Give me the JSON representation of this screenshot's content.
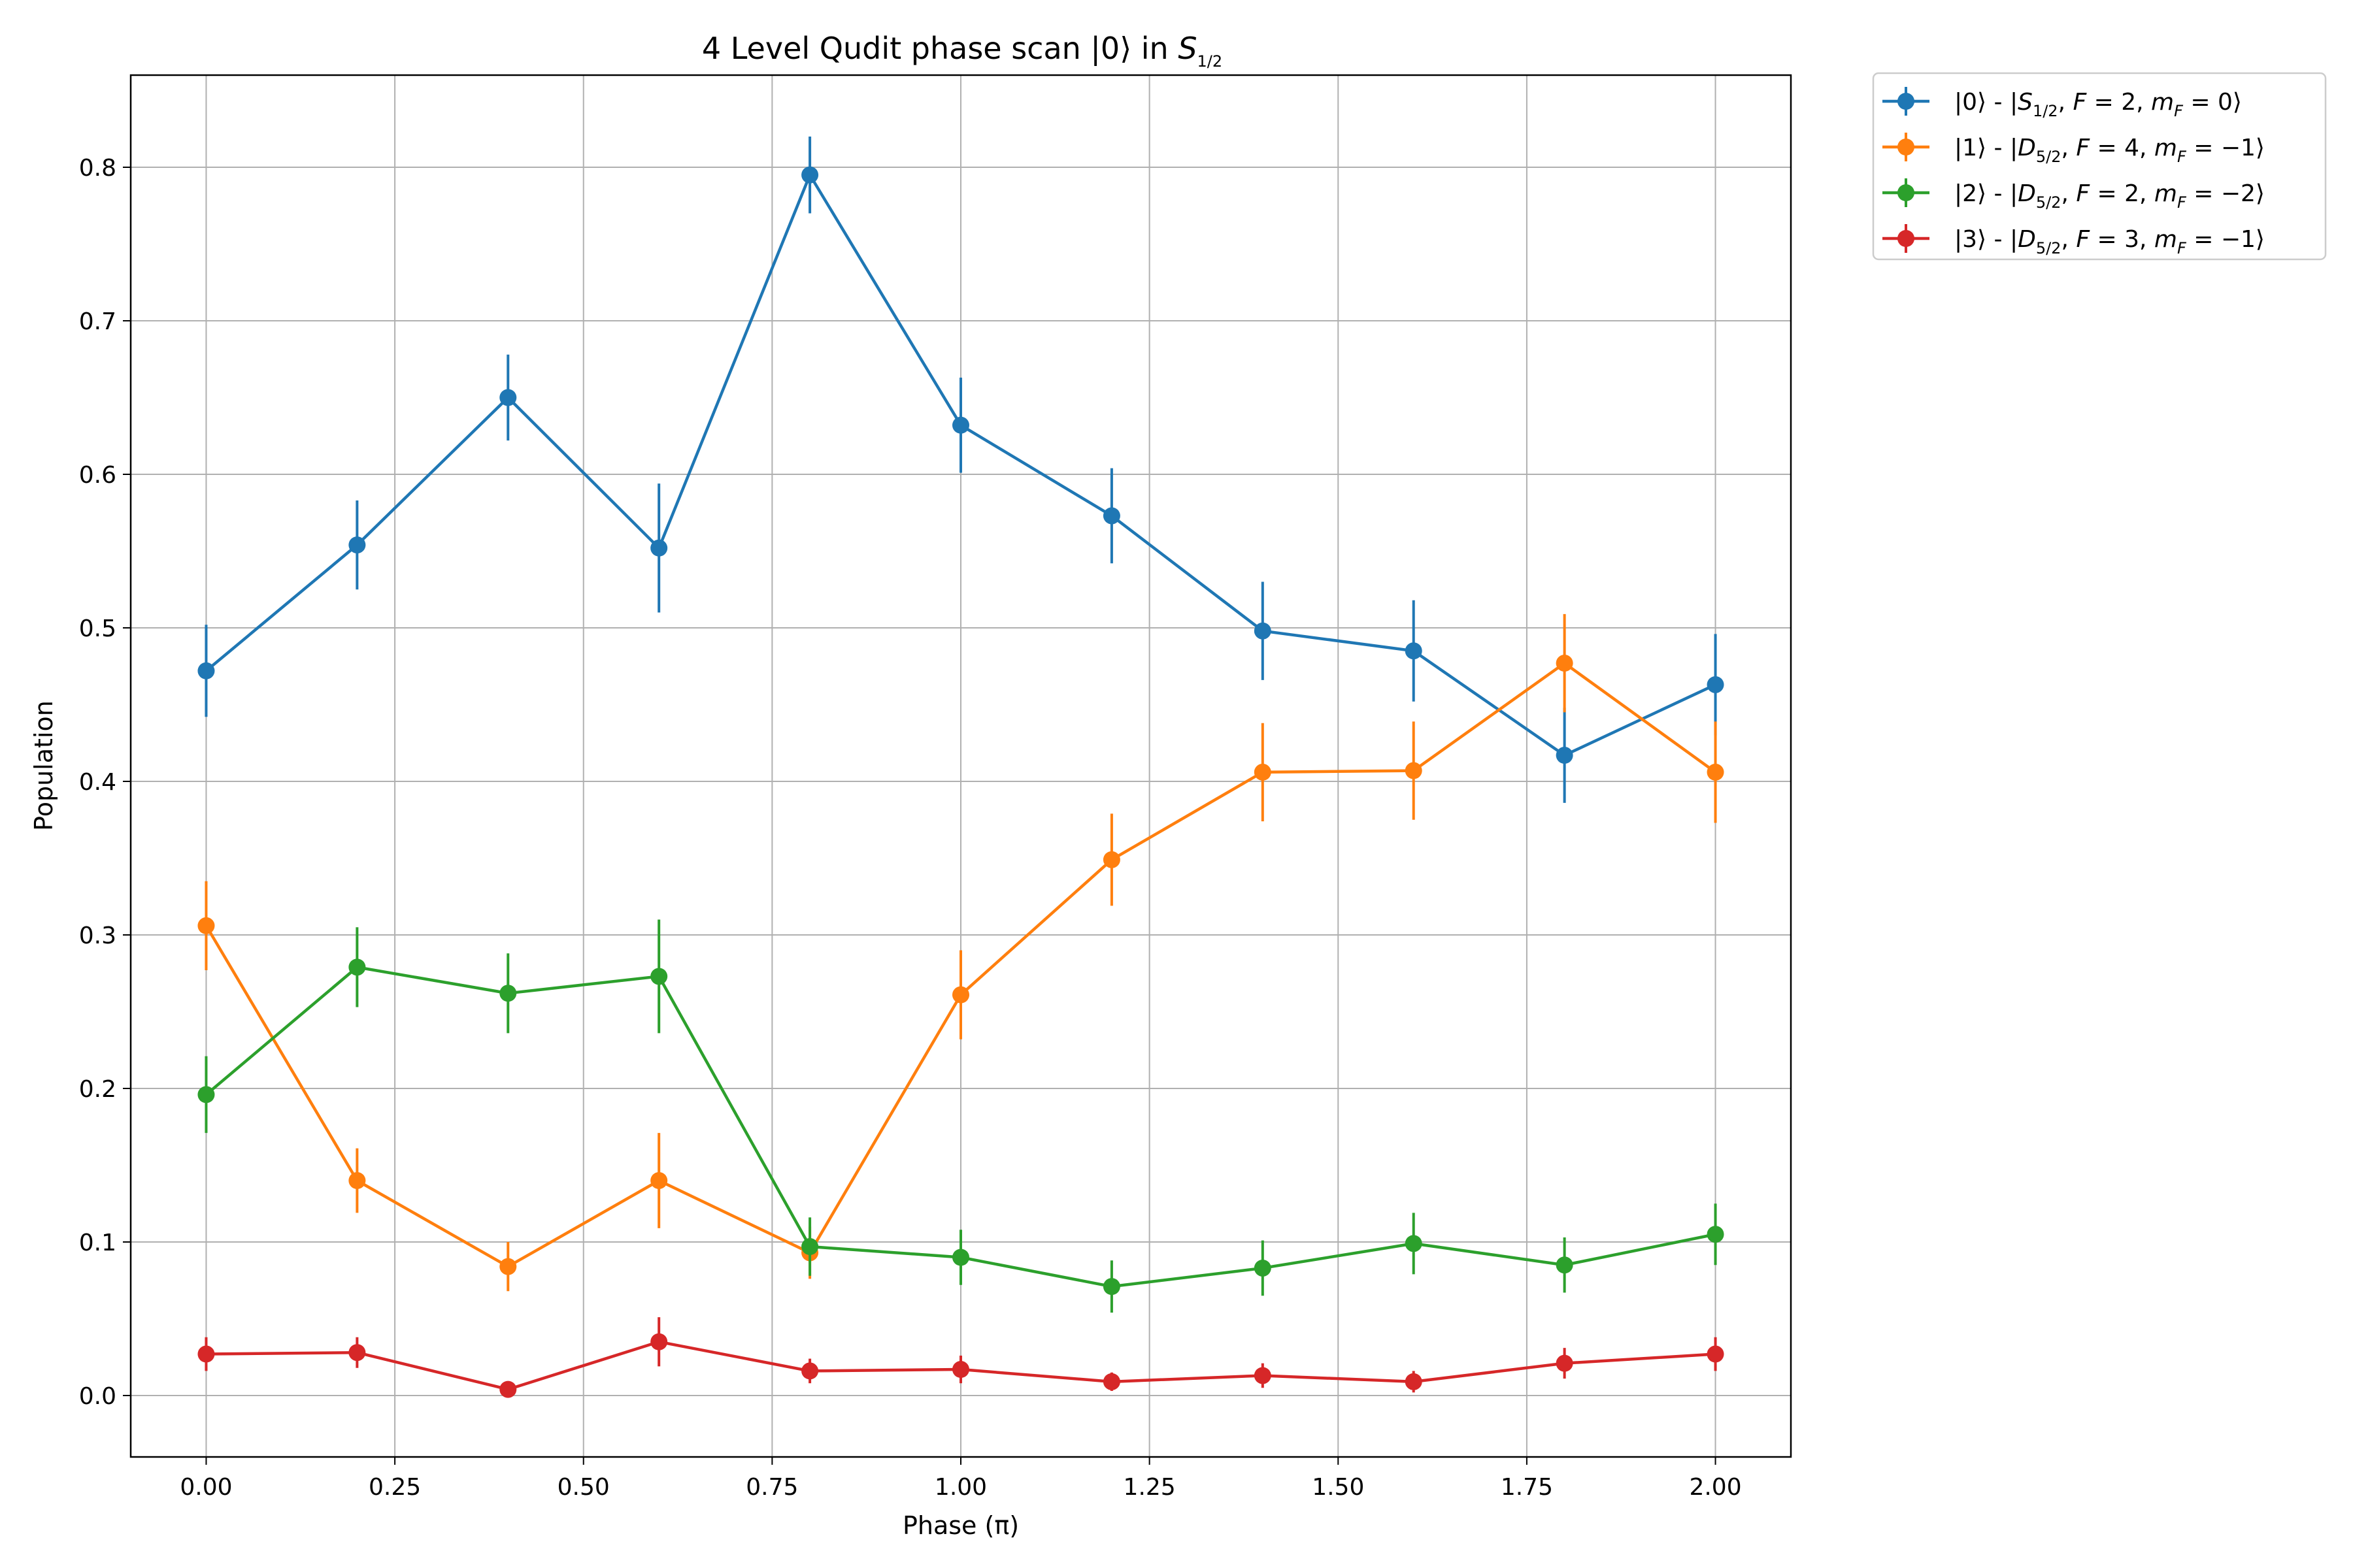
{
  "chart_data": {
    "type": "line",
    "title_parts": {
      "prefix": "4 Level Qudit phase scan |0⟩ in ",
      "math_base": "S",
      "math_sub": "1/2"
    },
    "xlabel": "Phase (π)",
    "ylabel": "Population",
    "xlim": [
      -0.1,
      2.1
    ],
    "ylim": [
      -0.04,
      0.86
    ],
    "xticks": [
      0.0,
      0.25,
      0.5,
      0.75,
      1.0,
      1.25,
      1.5,
      1.75,
      2.0
    ],
    "xtick_labels": [
      "0.00",
      "0.25",
      "0.50",
      "0.75",
      "1.00",
      "1.25",
      "1.50",
      "1.75",
      "2.00"
    ],
    "yticks": [
      0.0,
      0.1,
      0.2,
      0.3,
      0.4,
      0.5,
      0.6,
      0.7,
      0.8
    ],
    "ytick_labels": [
      "0.0",
      "0.1",
      "0.2",
      "0.3",
      "0.4",
      "0.5",
      "0.6",
      "0.7",
      "0.8"
    ],
    "grid": true,
    "legend_position": "outside-upper-right",
    "x": [
      0.0,
      0.2,
      0.4,
      0.6,
      0.8,
      1.0,
      1.2,
      1.4,
      1.6,
      1.8,
      2.0
    ],
    "series": [
      {
        "color": "#1f77b4",
        "label_parts": {
          "ket": "|0⟩",
          "level": "S",
          "sub": "1/2",
          "F": "2",
          "mF": "0"
        },
        "values": [
          0.472,
          0.554,
          0.65,
          0.552,
          0.795,
          0.632,
          0.573,
          0.498,
          0.485,
          0.417,
          0.463
        ],
        "errors": [
          0.03,
          0.029,
          0.028,
          0.042,
          0.025,
          0.031,
          0.031,
          0.032,
          0.033,
          0.031,
          0.033
        ]
      },
      {
        "color": "#ff7f0e",
        "label_parts": {
          "ket": "|1⟩",
          "level": "D",
          "sub": "5/2",
          "F": "4",
          "mF": "−1"
        },
        "values": [
          0.306,
          0.14,
          0.084,
          0.14,
          0.093,
          0.261,
          0.349,
          0.406,
          0.407,
          0.477,
          0.406
        ],
        "errors": [
          0.029,
          0.021,
          0.016,
          0.031,
          0.017,
          0.029,
          0.03,
          0.032,
          0.032,
          0.032,
          0.033
        ]
      },
      {
        "color": "#2ca02c",
        "label_parts": {
          "ket": "|2⟩",
          "level": "D",
          "sub": "5/2",
          "F": "2",
          "mF": "−2"
        },
        "values": [
          0.196,
          0.279,
          0.262,
          0.273,
          0.097,
          0.09,
          0.071,
          0.083,
          0.099,
          0.085,
          0.105
        ],
        "errors": [
          0.025,
          0.026,
          0.026,
          0.037,
          0.019,
          0.018,
          0.017,
          0.018,
          0.02,
          0.018,
          0.02
        ]
      },
      {
        "color": "#d62728",
        "label_parts": {
          "ket": "|3⟩",
          "level": "D",
          "sub": "5/2",
          "F": "3",
          "mF": "−1"
        },
        "values": [
          0.027,
          0.028,
          0.004,
          0.035,
          0.016,
          0.017,
          0.009,
          0.013,
          0.009,
          0.021,
          0.027
        ],
        "errors": [
          0.011,
          0.01,
          0.004,
          0.016,
          0.008,
          0.009,
          0.006,
          0.008,
          0.007,
          0.01,
          0.011
        ]
      }
    ]
  }
}
